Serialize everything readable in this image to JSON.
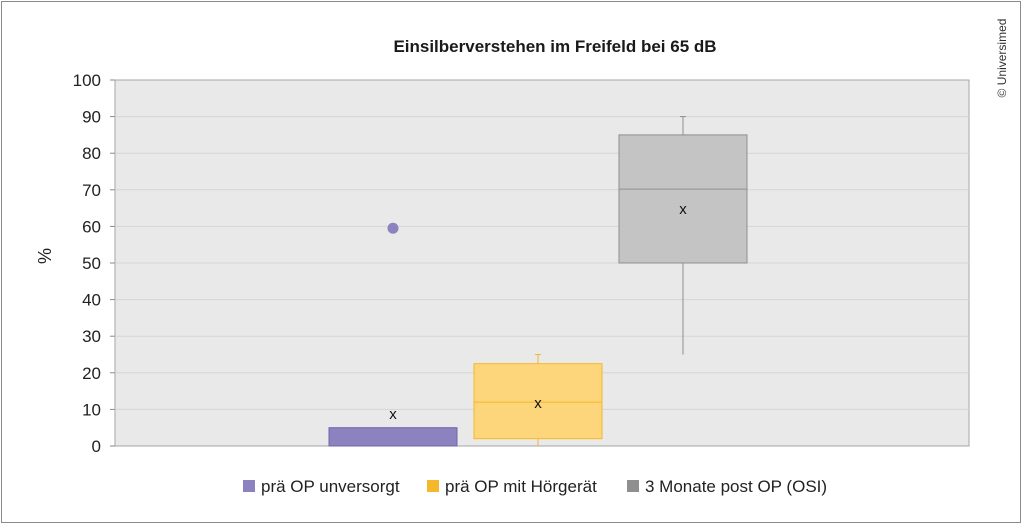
{
  "copyright": "© Universimed",
  "chart_data": {
    "type": "box",
    "title": "Einsilberverstehen im Freifeld bei 65 dB",
    "ylabel": "%",
    "xlabel": "",
    "ylim": [
      0,
      100
    ],
    "yticks": [
      0,
      10,
      20,
      30,
      40,
      50,
      60,
      70,
      80,
      90,
      100
    ],
    "grid": true,
    "legend_position": "bottom",
    "mean_marker": "x",
    "series": [
      {
        "name": "prä OP unversorgt",
        "color": "#8c82c0",
        "stroke": "#6f66a8",
        "min": 0,
        "q1": 0,
        "median": 0,
        "q3": 5,
        "max": 5,
        "mean": 9,
        "outliers": [
          59.5
        ]
      },
      {
        "name": "prä OP mit Hörgerät",
        "color": "#fdd57a",
        "stroke": "#f5b82a",
        "min": 0,
        "q1": 2,
        "median": 12,
        "q3": 22.5,
        "max": 25,
        "mean": 12,
        "outliers": []
      },
      {
        "name": "3 Monate post OP (OSI)",
        "color": "#c4c4c4",
        "stroke": "#8f8f8f",
        "min": 25,
        "q1": 50,
        "median": 70.2,
        "q3": 85,
        "max": 90,
        "mean": 65,
        "outliers": []
      }
    ],
    "legend_swatch_colors": [
      "#8c82c0",
      "#f5b82a",
      "#8f8f8f"
    ]
  }
}
